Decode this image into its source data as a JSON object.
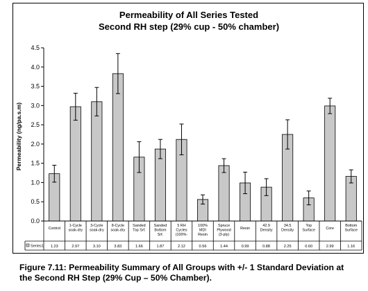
{
  "chart_data": {
    "type": "bar",
    "title": "Permeability of All Series Tested",
    "subtitle": "Second RH step (29% cup - 50% chamber)",
    "ylabel": "Permeability (ng/pa.s.m)",
    "xlabel": "",
    "ylim": [
      0,
      4.5
    ],
    "yticks": [
      "0.0",
      "0.5",
      "1.0",
      "1.5",
      "2.0",
      "2.5",
      "3.0",
      "3.5",
      "4.0",
      "4.5"
    ],
    "grid": false,
    "legend": "data-table",
    "categories": [
      [
        "Control"
      ],
      [
        "1-Cycle",
        "soak-dry"
      ],
      [
        "3-Cycle",
        "soak-dry"
      ],
      [
        "8-Cycle",
        "soak-dry"
      ],
      [
        "Sanded",
        "Top Srf."
      ],
      [
        "Sanded",
        "Bottom",
        "Srf."
      ],
      [
        "5 RH",
        "Cycles",
        "(100%-"
      ],
      [
        "100%",
        "MDI",
        "Resin"
      ],
      [
        "Spruce",
        "Plywood",
        "(3-ply)"
      ],
      [
        "Resin"
      ],
      [
        "42.9",
        "Density"
      ],
      [
        "34.5",
        "Density"
      ],
      [
        "Top",
        "Surface"
      ],
      [
        "Core"
      ],
      [
        "Bottom",
        "Surface"
      ]
    ],
    "series": [
      {
        "name": "Series1",
        "value_labels": [
          "1.23",
          "2.97",
          "3.10",
          "3.83",
          "1.66",
          "1.87",
          "2.12",
          "0.56",
          "1.44",
          "0.99",
          "0.88",
          "2.25",
          "0.60",
          "2.99",
          "1.16"
        ],
        "values": [
          1.23,
          2.97,
          3.1,
          3.83,
          1.66,
          1.87,
          2.12,
          0.56,
          1.44,
          0.99,
          0.88,
          2.25,
          0.6,
          2.99,
          1.16
        ],
        "error": [
          0.22,
          0.35,
          0.37,
          0.52,
          0.4,
          0.25,
          0.4,
          0.12,
          0.18,
          0.28,
          0.22,
          0.38,
          0.18,
          0.2,
          0.17
        ]
      }
    ],
    "colors": {
      "bar_fill": "#c8c8c8",
      "bar_stroke": "#000000",
      "line": "#000000"
    }
  },
  "caption": "Figure 7.11:  Permeability Summary of All Groups with +/- 1 Standard Deviation at the Second RH Step (29% Cup – 50% Chamber)."
}
